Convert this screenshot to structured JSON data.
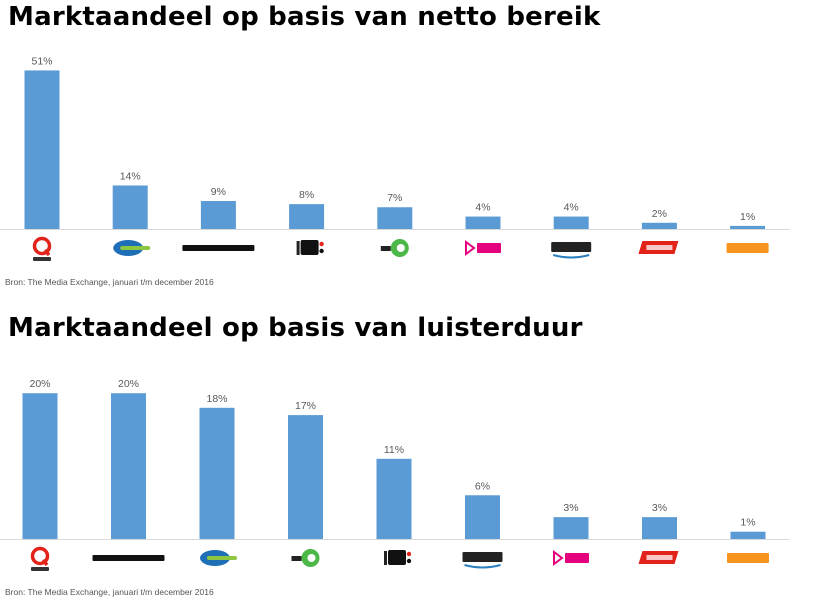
{
  "source": "Bron: The Media Exchange,  januari t/m december 2016",
  "colors": {
    "bar": "#5b9bd5",
    "axis": "#d9d9d9",
    "label": "#595959"
  },
  "chart_data": [
    {
      "type": "bar",
      "title": "Marktaandeel op basis van netto bereik",
      "categories": [
        "Qmusic",
        "Sky Radio",
        "INDEPENDENTS",
        "Radio 538",
        "Radio 10",
        "SLAM!",
        "Veronica",
        "Top 40",
        "100%NL"
      ],
      "values": [
        51,
        14,
        9,
        8,
        7,
        4,
        4,
        2,
        1
      ],
      "value_labels": [
        "51%",
        "14%",
        "9%",
        "8%",
        "7%",
        "4%",
        "4%",
        "2%",
        "1%"
      ],
      "ylim": [
        0,
        55
      ],
      "grid": false,
      "xlabel": "",
      "ylabel": ""
    },
    {
      "type": "bar",
      "title": "Marktaandeel op basis van luisterduur",
      "categories": [
        "Qmusic",
        "INDEPENDENTS",
        "Sky Radio",
        "Radio 10",
        "Radio 538",
        "Veronica",
        "SLAM!",
        "Top 40",
        "100%NL"
      ],
      "values": [
        20,
        20,
        18,
        17,
        11,
        6,
        3,
        3,
        1
      ],
      "value_labels": [
        "20%",
        "20%",
        "18%",
        "17%",
        "11%",
        "6%",
        "3%",
        "3%",
        "1%"
      ],
      "ylim": [
        0,
        22.5
      ],
      "grid": false,
      "xlabel": "",
      "ylabel": ""
    }
  ]
}
